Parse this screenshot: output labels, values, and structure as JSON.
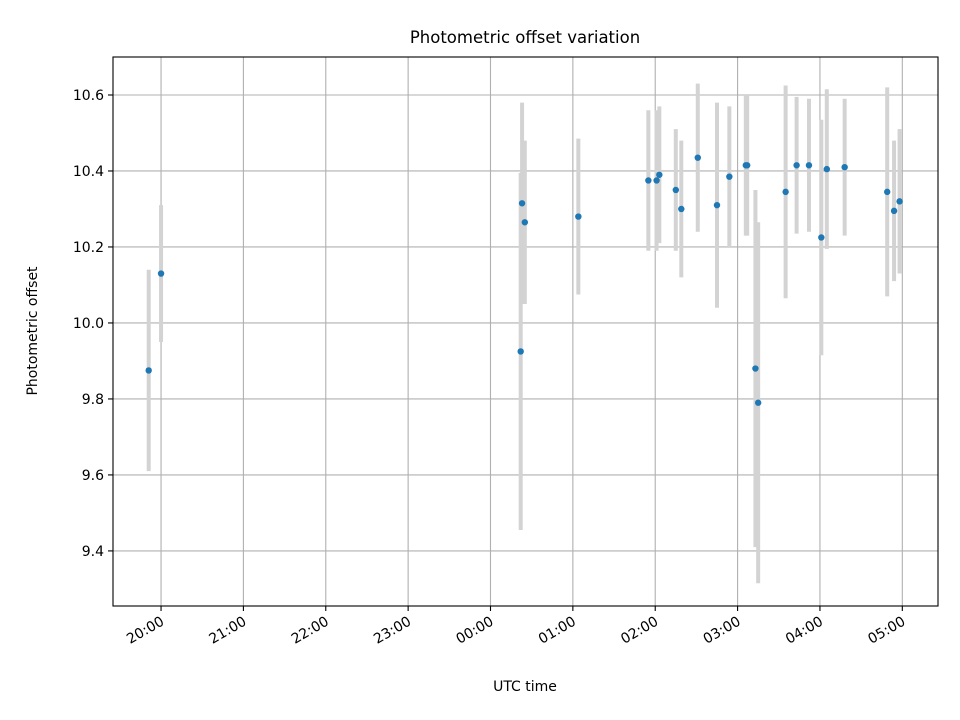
{
  "chart_data": {
    "type": "scatter",
    "title": "Photometric offset variation",
    "xlabel": "UTC time",
    "ylabel": "Photometric offset",
    "x_axis_type": "time",
    "x_tick_labels": [
      "20:00",
      "21:00",
      "22:00",
      "23:00",
      "00:00",
      "01:00",
      "02:00",
      "03:00",
      "04:00",
      "05:00"
    ],
    "y_tick_labels": [
      "9.4",
      "9.6",
      "9.8",
      "10.0",
      "10.2",
      "10.4",
      "10.6"
    ],
    "y_ticks": [
      9.4,
      9.6,
      9.8,
      10.0,
      10.2,
      10.4,
      10.6
    ],
    "ylim": [
      9.255,
      10.7
    ],
    "xlim": [
      "19:25",
      "05:26"
    ],
    "grid": true,
    "point_color": "#1f77b4",
    "errorbar_color": "#d3d3d3",
    "points": [
      {
        "x": "19:51",
        "y": 9.875,
        "yerr": 0.265
      },
      {
        "x": "20:00",
        "y": 10.13,
        "yerr": 0.18
      },
      {
        "x": "00:22",
        "y": 9.925,
        "yerr": 0.47
      },
      {
        "x": "00:23",
        "y": 10.315,
        "yerr": 0.265
      },
      {
        "x": "00:25",
        "y": 10.265,
        "yerr": 0.215
      },
      {
        "x": "01:04",
        "y": 10.28,
        "yerr": 0.205
      },
      {
        "x": "01:55",
        "y": 10.375,
        "yerr": 0.185
      },
      {
        "x": "02:01",
        "y": 10.375,
        "yerr": 0.185
      },
      {
        "x": "02:03",
        "y": 10.39,
        "yerr": 0.18
      },
      {
        "x": "02:15",
        "y": 10.35,
        "yerr": 0.16
      },
      {
        "x": "02:19",
        "y": 10.3,
        "yerr": 0.18
      },
      {
        "x": "02:31",
        "y": 10.435,
        "yerr": 0.195
      },
      {
        "x": "02:45",
        "y": 10.31,
        "yerr": 0.27
      },
      {
        "x": "02:54",
        "y": 10.385,
        "yerr": 0.185
      },
      {
        "x": "03:06",
        "y": 10.415,
        "yerr": 0.185
      },
      {
        "x": "03:07",
        "y": 10.415,
        "yerr": 0.185
      },
      {
        "x": "03:13",
        "y": 9.88,
        "yerr": 0.47
      },
      {
        "x": "03:15",
        "y": 9.79,
        "yerr": 0.475
      },
      {
        "x": "03:35",
        "y": 10.345,
        "yerr": 0.28
      },
      {
        "x": "03:43",
        "y": 10.415,
        "yerr": 0.18
      },
      {
        "x": "03:52",
        "y": 10.415,
        "yerr": 0.175
      },
      {
        "x": "04:01",
        "y": 10.225,
        "yerr": 0.31
      },
      {
        "x": "04:05",
        "y": 10.405,
        "yerr": 0.21
      },
      {
        "x": "04:18",
        "y": 10.41,
        "yerr": 0.18
      },
      {
        "x": "04:49",
        "y": 10.345,
        "yerr": 0.275
      },
      {
        "x": "04:54",
        "y": 10.295,
        "yerr": 0.185
      },
      {
        "x": "04:58",
        "y": 10.32,
        "yerr": 0.19
      }
    ]
  }
}
